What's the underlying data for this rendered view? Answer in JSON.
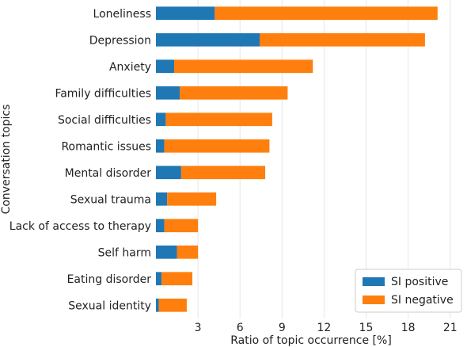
{
  "chart_data": {
    "type": "bar",
    "orientation": "horizontal",
    "stacked": true,
    "categories": [
      "Loneliness",
      "Depression",
      "Anxiety",
      "Family difficulties",
      "Social difficulties",
      "Romantic issues",
      "Mental disorder",
      "Sexual trauma",
      "Lack of access to therapy",
      "Self harm",
      "Eating disorder",
      "Sexual identity"
    ],
    "series": [
      {
        "name": "SI positive",
        "color": "#1f77b4",
        "values": [
          4.2,
          7.4,
          1.3,
          1.7,
          0.7,
          0.6,
          1.8,
          0.8,
          0.6,
          1.5,
          0.4,
          0.2
        ]
      },
      {
        "name": "SI negative",
        "color": "#ff7f0e",
        "values": [
          15.9,
          11.8,
          9.9,
          7.7,
          7.6,
          7.5,
          6.0,
          3.5,
          2.4,
          1.5,
          2.2,
          2.0
        ]
      }
    ],
    "xticks": [
      3,
      6,
      9,
      12,
      15,
      18,
      21
    ],
    "xlim": [
      0,
      22.2
    ],
    "grid": "vertical",
    "title": "",
    "xlabel": "Ratio of topic occurrence [%]",
    "ylabel": "Conversation topics",
    "legend_position": "bottom-right"
  }
}
